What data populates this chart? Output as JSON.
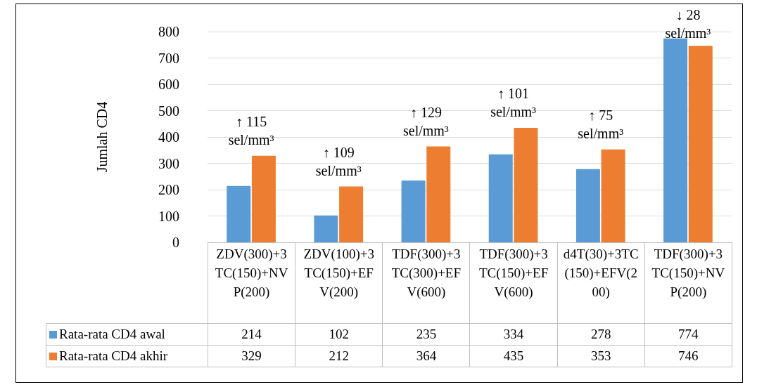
{
  "chart_data": {
    "type": "bar",
    "ylabel": "Jumlah CD4",
    "categories": [
      "ZDV(300)+3TC(150)+NVP(200)",
      "ZDV(100)+3TC(150)+EFV(200)",
      "TDF(300)+3TC(300)+EFV(600)",
      "TDF(300)+3TC(150)+EFV(600)",
      "d4T(30)+3TC(150)+EFV(200)",
      "TDF(300)+3TC(150)+NVP(200)"
    ],
    "series": [
      {
        "name": "Rata-rata CD4 awal",
        "color": "#5b9bd5",
        "values": [
          214,
          102,
          235,
          334,
          278,
          774
        ]
      },
      {
        "name": "Rata-rata CD4 akhir",
        "color": "#ed7d31",
        "values": [
          329,
          212,
          364,
          435,
          353,
          746
        ]
      }
    ],
    "ylim": [
      0,
      800
    ],
    "yticks": [
      0,
      100,
      200,
      300,
      400,
      500,
      600,
      700,
      800
    ],
    "grid": "y",
    "legend": "bottom",
    "data_labels": true,
    "annotations": [
      "↑ 115 sel/mm³",
      "↑ 109 sel/mm³",
      "↑ 129 sel/mm³",
      "↑ 101 sel/mm³",
      "↑ 75 sel/mm³",
      "↓ 28 sel/mm³"
    ]
  }
}
